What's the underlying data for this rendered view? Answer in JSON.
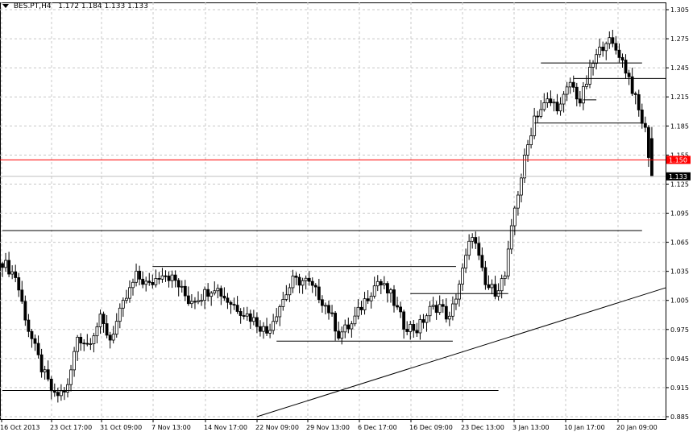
{
  "header": {
    "symbol_label": "BES.PT,H4",
    "ohlc_label": "1.172 1.184 1.133 1.133"
  },
  "chart_data": {
    "type": "candlestick",
    "symbol": "BES.PT",
    "timeframe": "H4",
    "ylim": [
      0.885,
      1.305
    ],
    "yticks": [
      "1.305",
      "1.275",
      "1.245",
      "1.215",
      "1.185",
      "1.155",
      "1.125",
      "1.095",
      "1.065",
      "1.035",
      "1.005",
      "0.975",
      "0.945",
      "0.915",
      "0.885"
    ],
    "xtick_labels": [
      "16 Oct 2013",
      "23 Oct 17:00",
      "31 Oct 09:00",
      "7 Nov 13:00",
      "14 Nov 17:00",
      "22 Nov 09:00",
      "29 Nov 13:00",
      "6 Dec 17:00",
      "16 Dec 09:00",
      "23 Dec 13:00",
      "3 Jan 13:00",
      "10 Jan 17:00",
      "20 Jan 09:00"
    ],
    "bars_count": 200,
    "anchors": [
      [
        0,
        1.045
      ],
      [
        4,
        1.03
      ],
      [
        8,
        0.975
      ],
      [
        12,
        0.935
      ],
      [
        16,
        0.905
      ],
      [
        20,
        0.915
      ],
      [
        23,
        0.968
      ],
      [
        26,
        0.96
      ],
      [
        30,
        0.985
      ],
      [
        33,
        0.965
      ],
      [
        37,
        1.0
      ],
      [
        41,
        1.03
      ],
      [
        45,
        1.02
      ],
      [
        49,
        1.035
      ],
      [
        53,
        1.025
      ],
      [
        57,
        1.005
      ],
      [
        61,
        1.01
      ],
      [
        65,
        1.02
      ],
      [
        69,
        1.005
      ],
      [
        73,
        0.995
      ],
      [
        77,
        0.985
      ],
      [
        81,
        0.972
      ],
      [
        85,
        1.0
      ],
      [
        89,
        1.025
      ],
      [
        93,
        1.025
      ],
      [
        97,
        1.01
      ],
      [
        100,
        0.995
      ],
      [
        103,
        0.97
      ],
      [
        107,
        0.98
      ],
      [
        111,
        1.005
      ],
      [
        115,
        1.025
      ],
      [
        119,
        1.01
      ],
      [
        123,
        0.98
      ],
      [
        127,
        0.975
      ],
      [
        131,
        0.995
      ],
      [
        134,
        1.0
      ],
      [
        137,
        0.985
      ],
      [
        141,
        1.035
      ],
      [
        144,
        1.075
      ],
      [
        148,
        1.02
      ],
      [
        151,
        1.015
      ],
      [
        154,
        1.03
      ],
      [
        157,
        1.1
      ],
      [
        160,
        1.15
      ],
      [
        163,
        1.195
      ],
      [
        167,
        1.21
      ],
      [
        171,
        1.205
      ],
      [
        174,
        1.23
      ],
      [
        177,
        1.21
      ],
      [
        181,
        1.25
      ],
      [
        185,
        1.275
      ],
      [
        189,
        1.26
      ],
      [
        192,
        1.235
      ],
      [
        195,
        1.2
      ],
      [
        197,
        1.18
      ],
      [
        199,
        1.133
      ]
    ],
    "last_candle": {
      "open": 1.172,
      "high": 1.184,
      "low": 1.133,
      "close": 1.133
    },
    "horizontal_lines": [
      {
        "price": 1.15,
        "color": "#ff0000",
        "label": "1.150"
      },
      {
        "price": 1.133,
        "color": "#c0c0c0",
        "label": "1.133"
      }
    ],
    "sr_levels": [
      {
        "price": 1.077,
        "from_bar": 0,
        "to_bar": 196
      },
      {
        "price": 0.912,
        "from_bar": 0,
        "to_bar": 152
      },
      {
        "price": 1.04,
        "from_bar": 46,
        "to_bar": 139
      },
      {
        "price": 0.963,
        "from_bar": 84,
        "to_bar": 138
      },
      {
        "price": 1.012,
        "from_bar": 125,
        "to_bar": 155
      },
      {
        "price": 1.25,
        "from_bar": 165,
        "to_bar": 196
      },
      {
        "price": 1.234,
        "from_bar": 175,
        "to_bar": 204
      },
      {
        "price": 1.188,
        "from_bar": 163,
        "to_bar": 196
      },
      {
        "price": 1.212,
        "from_bar": 178,
        "to_bar": 182
      }
    ],
    "trendline": {
      "from": [
        78,
        0.885
      ],
      "to": [
        204,
        1.018
      ]
    },
    "grid": true,
    "colors": {
      "candle": "#000000",
      "grid": "#c8c8c8",
      "price_line": "#ff0000",
      "current_price_bg": "#000000"
    }
  }
}
